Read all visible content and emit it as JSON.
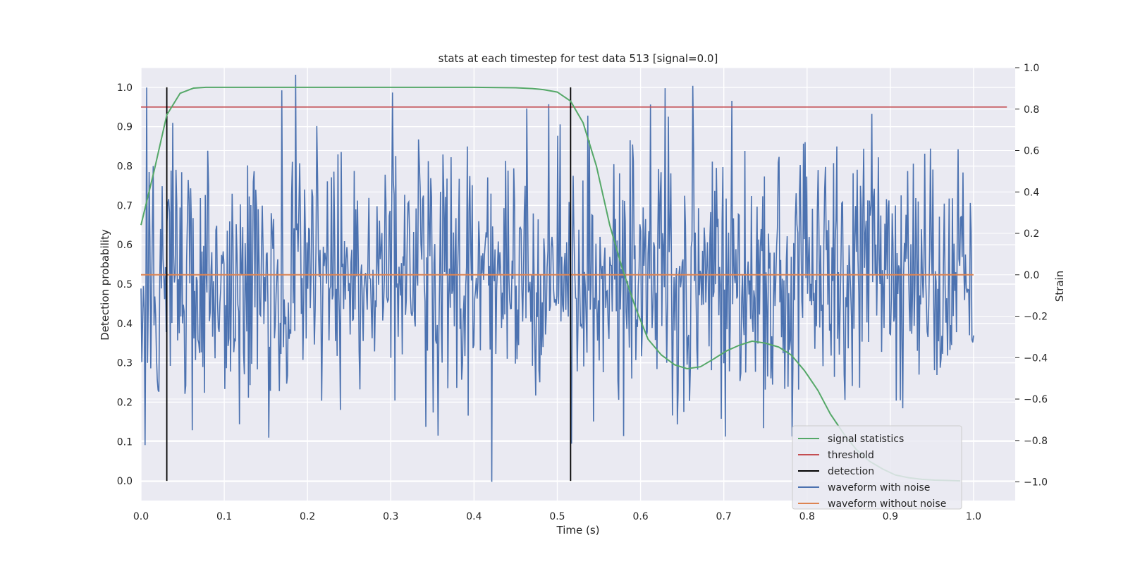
{
  "chart_data": {
    "type": "line",
    "title": "stats at each timestep for test data 513 [signal=0.0]",
    "xlabel": "Time (s)",
    "ylabel": "Detection probability",
    "y2label": "Strain",
    "xlim": [
      0.0,
      1.05
    ],
    "ylim": [
      -0.05,
      1.05
    ],
    "y2lim": [
      -1.09,
      1.0
    ],
    "grid": true,
    "legend_position": "bottom-right",
    "x_ticks": [
      "0.0",
      "0.1",
      "0.2",
      "0.3",
      "0.4",
      "0.5",
      "0.6",
      "0.7",
      "0.8",
      "0.9",
      "1.0"
    ],
    "y_ticks": [
      "0.0",
      "0.1",
      "0.2",
      "0.3",
      "0.4",
      "0.5",
      "0.6",
      "0.7",
      "0.8",
      "0.9",
      "1.0"
    ],
    "y2_ticks": [
      "−1.0",
      "−0.8",
      "−0.6",
      "−0.4",
      "−0.2",
      "0.0",
      "0.2",
      "0.4",
      "0.6",
      "0.8",
      "1.0"
    ],
    "series": [
      {
        "name": "signal statistics",
        "color": "#55a868",
        "axis": "left",
        "x": [
          0.0,
          0.016,
          0.031,
          0.047,
          0.063,
          0.078,
          0.094,
          0.2,
          0.3,
          0.4,
          0.45,
          0.47,
          0.484,
          0.5,
          0.516,
          0.531,
          0.547,
          0.563,
          0.578,
          0.594,
          0.609,
          0.625,
          0.641,
          0.656,
          0.672,
          0.688,
          0.703,
          0.719,
          0.734,
          0.75,
          0.766,
          0.781,
          0.797,
          0.813,
          0.828,
          0.844,
          0.859,
          0.875,
          0.891,
          0.906,
          0.922,
          0.938,
          0.953,
          0.969,
          0.984
        ],
        "y": [
          0.65,
          0.79,
          0.93,
          0.985,
          0.998,
          1.0,
          1.0,
          1.0,
          1.0,
          1.0,
          0.999,
          0.997,
          0.994,
          0.988,
          0.965,
          0.91,
          0.8,
          0.65,
          0.54,
          0.44,
          0.36,
          0.32,
          0.295,
          0.285,
          0.29,
          0.31,
          0.33,
          0.345,
          0.355,
          0.35,
          0.34,
          0.32,
          0.28,
          0.23,
          0.17,
          0.12,
          0.08,
          0.05,
          0.03,
          0.015,
          0.008,
          0.004,
          0.002,
          0.001,
          0.0
        ]
      },
      {
        "name": "threshold",
        "color": "#c44e52",
        "axis": "left",
        "x": [
          0.0,
          1.04
        ],
        "y": [
          0.95,
          0.95
        ]
      },
      {
        "name": "detection",
        "color": "#000000",
        "axis": "left",
        "x": [
          0.031,
          0.516
        ],
        "y_range": [
          0.0,
          1.0
        ]
      },
      {
        "name": "waveform with noise",
        "color": "#4c72b0",
        "axis": "right",
        "x_range": [
          0.0,
          1.0
        ],
        "n_points": 1024,
        "noise_std": 0.32,
        "y_range": [
          -1.0,
          1.0
        ]
      },
      {
        "name": "waveform without noise",
        "color": "#dd8452",
        "axis": "right",
        "x": [
          0.0,
          1.0
        ],
        "y": [
          0.0,
          0.0
        ]
      }
    ]
  }
}
